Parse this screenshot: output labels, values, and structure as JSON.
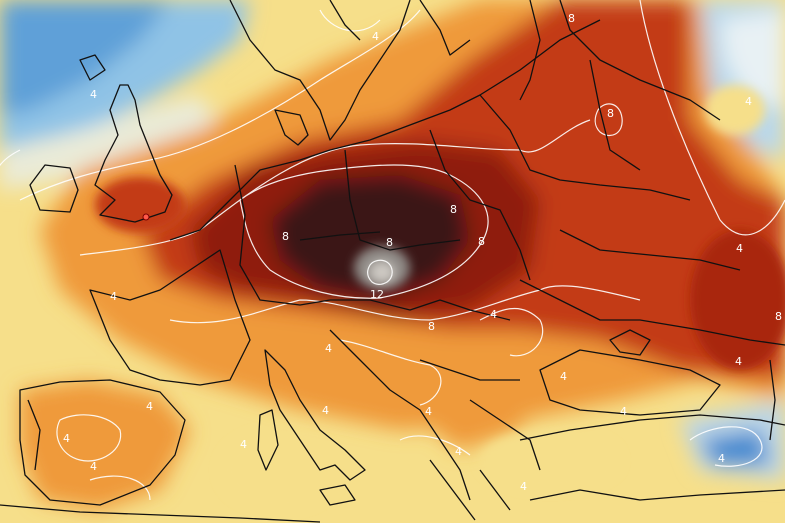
{
  "map": {
    "type": "temperature-anomaly-field",
    "colors": {
      "sea_cold": "#8fc3e6",
      "cold_blue": "#3f88cf",
      "pale_cold": "#e6eff2",
      "neutral_yellow": "#f6df8a",
      "warm_orange": "#ef9a3b",
      "hot_red": "#c33a16",
      "very_hot": "#8f1a0b",
      "extreme_core": "#3a1412",
      "peak_grey": "#8f8a86",
      "contour_line": "#ffffff",
      "border_line": "#111111"
    },
    "contour_labels": [
      "8",
      "4",
      "4",
      "4",
      "8",
      "8",
      "8",
      "8",
      "8",
      "4",
      "12",
      "8",
      "8",
      "4",
      "4",
      "4",
      "4",
      "4",
      "4",
      "4",
      "4",
      "4",
      "4",
      "4",
      "4",
      "4",
      "4",
      "4"
    ]
  }
}
